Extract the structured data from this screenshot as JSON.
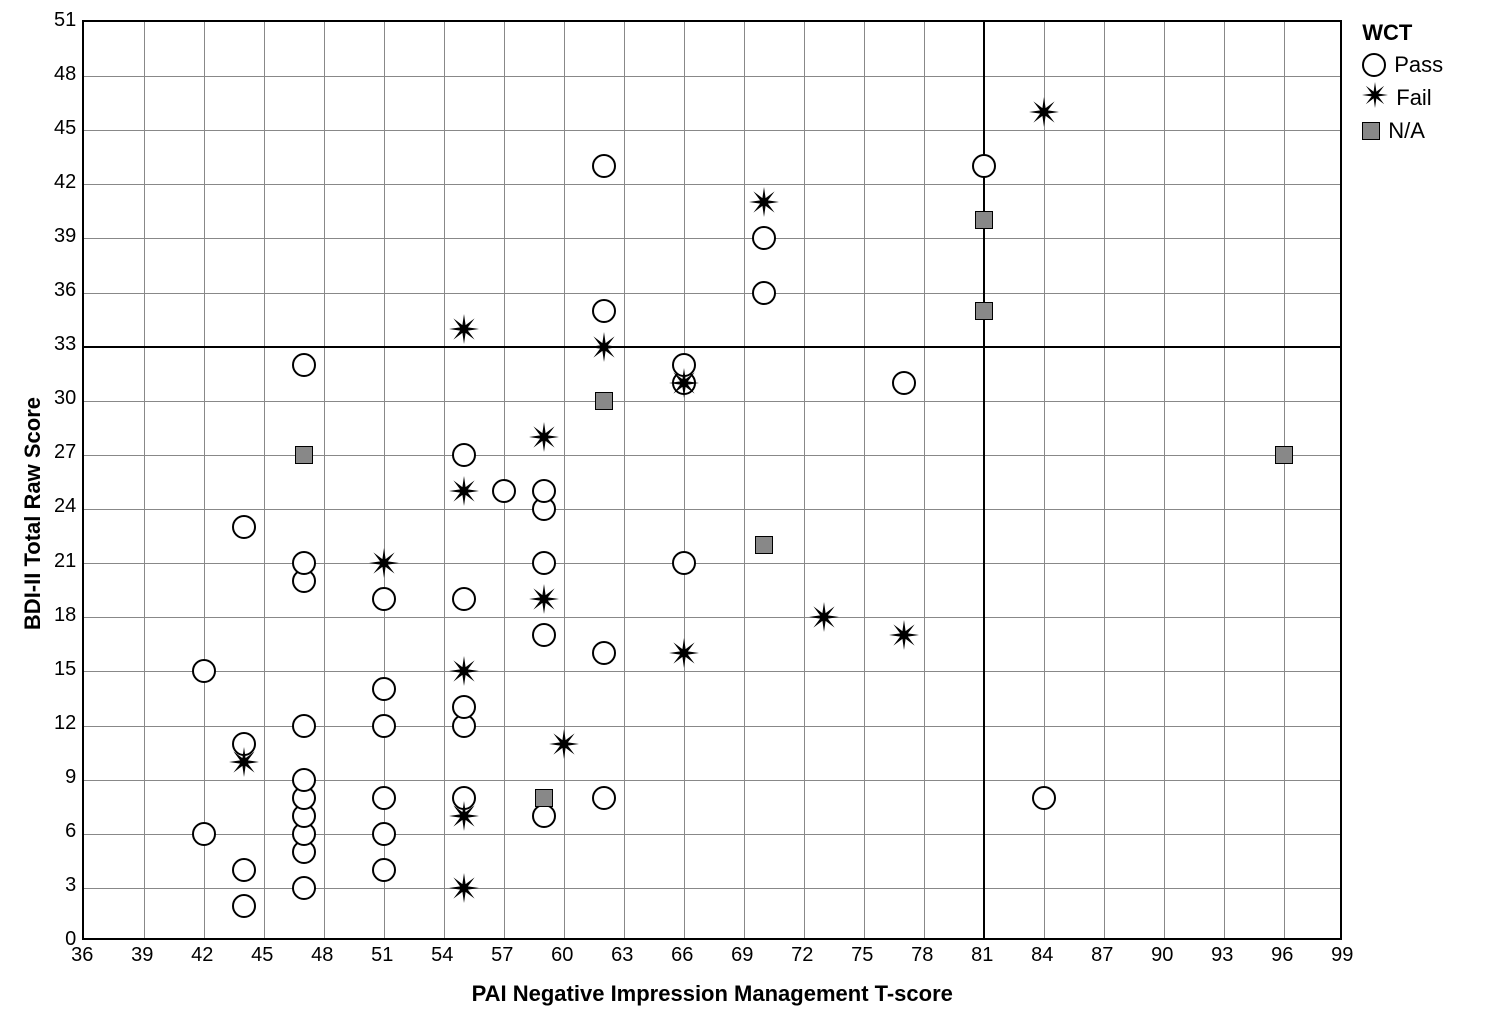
{
  "chart": {
    "type": "scatter",
    "xlabel": "PAI Negative Impression Management T-score",
    "ylabel": "BDI-II Total Raw Score",
    "label_fontsize": 22,
    "tick_fontsize": 20,
    "background_color": "#ffffff",
    "grid_color": "#888888",
    "border_color": "#000000",
    "xlim": [
      36,
      99
    ],
    "ylim": [
      0,
      51
    ],
    "xtick_step": 3,
    "ytick_step": 3,
    "xticks": [
      36,
      39,
      42,
      45,
      48,
      51,
      54,
      57,
      60,
      63,
      66,
      69,
      72,
      75,
      78,
      81,
      84,
      87,
      90,
      93,
      96,
      99
    ],
    "yticks": [
      0,
      3,
      6,
      9,
      12,
      15,
      18,
      21,
      24,
      27,
      30,
      33,
      36,
      39,
      42,
      45,
      48,
      51
    ],
    "ref_lines": {
      "vertical_x": 81,
      "horizontal_y": 33,
      "color": "#000000",
      "width": 2
    },
    "legend": {
      "title": "WCT",
      "title_fontsize": 22,
      "items": [
        {
          "label": "Pass",
          "marker": "circle",
          "color": "#000000",
          "fill": "#ffffff"
        },
        {
          "label": "Fail",
          "marker": "star",
          "color": "#000000",
          "fill": "#000000"
        },
        {
          "label": "N/A",
          "marker": "square",
          "color": "#000000",
          "fill": "#888888"
        }
      ]
    },
    "series": {
      "pass": {
        "marker": "circle",
        "marker_size": 24,
        "stroke": "#000000",
        "fill": "#ffffff",
        "points": [
          [
            42,
            6
          ],
          [
            42,
            15
          ],
          [
            44,
            2
          ],
          [
            44,
            4
          ],
          [
            44,
            11
          ],
          [
            44,
            23
          ],
          [
            47,
            3
          ],
          [
            47,
            5
          ],
          [
            47,
            6
          ],
          [
            47,
            7
          ],
          [
            47,
            8
          ],
          [
            47,
            9
          ],
          [
            47,
            12
          ],
          [
            47,
            20
          ],
          [
            47,
            21
          ],
          [
            47,
            32
          ],
          [
            51,
            4
          ],
          [
            51,
            6
          ],
          [
            51,
            8
          ],
          [
            51,
            12
          ],
          [
            51,
            14
          ],
          [
            51,
            19
          ],
          [
            55,
            8
          ],
          [
            55,
            12
          ],
          [
            55,
            13
          ],
          [
            55,
            19
          ],
          [
            55,
            27
          ],
          [
            57,
            25
          ],
          [
            59,
            7
          ],
          [
            59,
            17
          ],
          [
            59,
            21
          ],
          [
            59,
            24
          ],
          [
            59,
            25
          ],
          [
            62,
            8
          ],
          [
            62,
            16
          ],
          [
            62,
            35
          ],
          [
            62,
            43
          ],
          [
            66,
            21
          ],
          [
            66,
            31
          ],
          [
            66,
            32
          ],
          [
            70,
            36
          ],
          [
            70,
            39
          ],
          [
            77,
            31
          ],
          [
            81,
            43
          ],
          [
            84,
            8
          ]
        ]
      },
      "fail": {
        "marker": "star",
        "marker_size": 30,
        "stroke": "#000000",
        "fill": "#000000",
        "points": [
          [
            44,
            10
          ],
          [
            51,
            21
          ],
          [
            55,
            3
          ],
          [
            55,
            7
          ],
          [
            55,
            15
          ],
          [
            55,
            25
          ],
          [
            55,
            34
          ],
          [
            59,
            19
          ],
          [
            59,
            28
          ],
          [
            60,
            11
          ],
          [
            62,
            33
          ],
          [
            66,
            16
          ],
          [
            66,
            31
          ],
          [
            70,
            41
          ],
          [
            73,
            18
          ],
          [
            77,
            17
          ],
          [
            84,
            46
          ]
        ]
      },
      "na": {
        "marker": "square",
        "marker_size": 18,
        "stroke": "#000000",
        "fill": "#888888",
        "points": [
          [
            47,
            27
          ],
          [
            59,
            8
          ],
          [
            62,
            30
          ],
          [
            70,
            22
          ],
          [
            81,
            35
          ],
          [
            81,
            40
          ],
          [
            96,
            27
          ]
        ]
      }
    }
  }
}
